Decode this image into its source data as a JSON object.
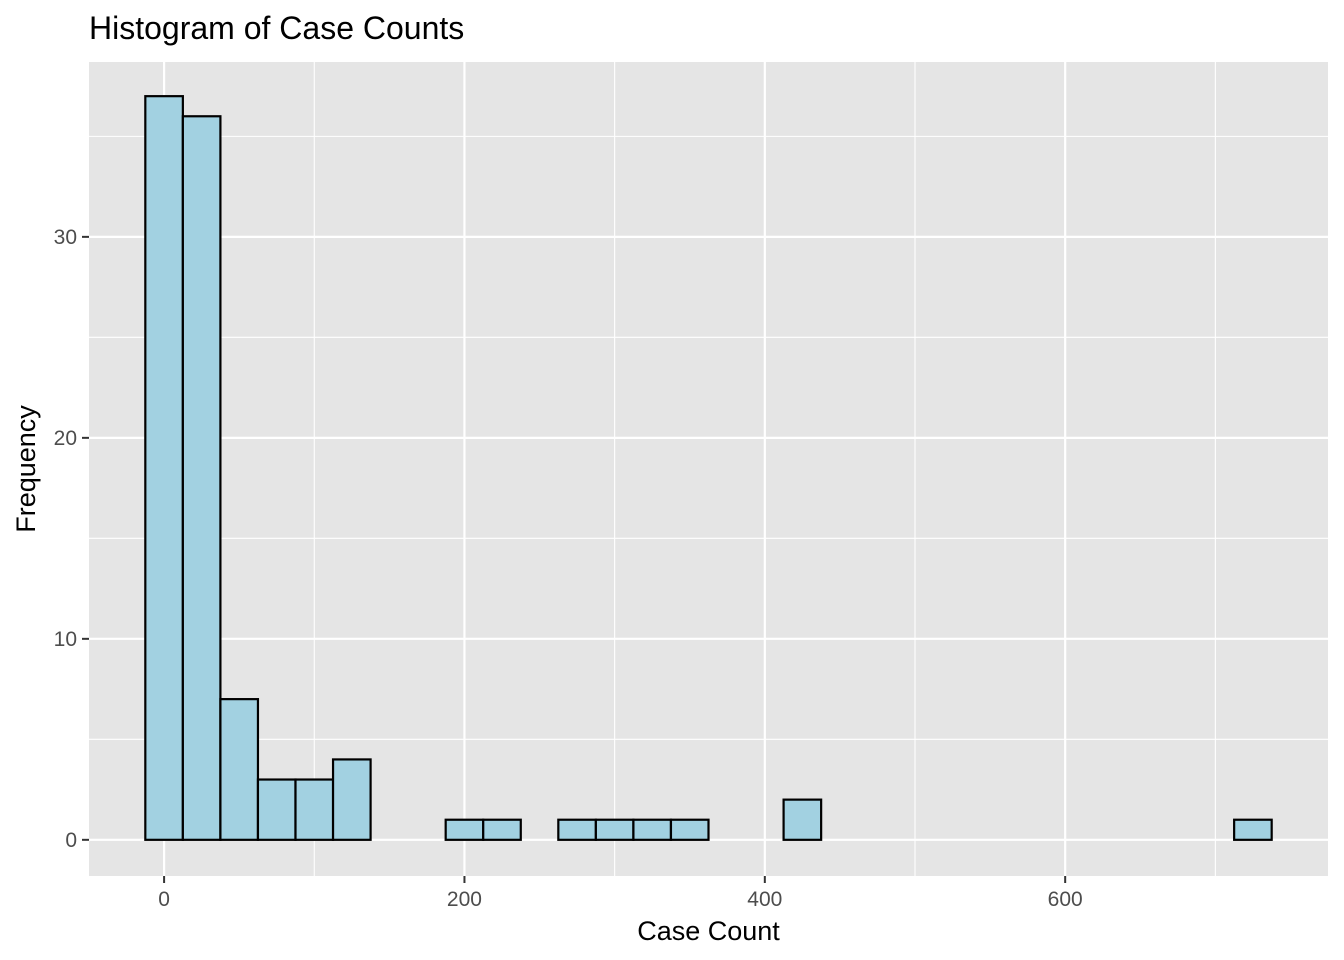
{
  "chart_data": {
    "type": "bar",
    "title": "Histogram of Case Counts",
    "xlabel": "Case Count",
    "ylabel": "Frequency",
    "xlim": [
      -50,
      775
    ],
    "ylim": [
      -1.8,
      38.7
    ],
    "x_ticks": [
      0,
      200,
      400,
      600
    ],
    "x_tick_labels": [
      "0",
      "200",
      "400",
      "600"
    ],
    "y_ticks": [
      0,
      10,
      20,
      30
    ],
    "y_tick_labels": [
      "0",
      "10",
      "20",
      "30"
    ],
    "grid": true,
    "bin_width": 25,
    "bin_starts": [
      -12.5,
      12.5,
      37.5,
      62.5,
      87.5,
      112.5,
      137.5,
      162.5,
      187.5,
      212.5,
      237.5,
      262.5,
      287.5,
      312.5,
      337.5,
      362.5,
      387.5,
      412.5,
      437.5,
      462.5,
      487.5,
      512.5,
      537.5,
      562.5,
      587.5,
      612.5,
      637.5,
      662.5,
      687.5,
      712.5
    ],
    "values": [
      37,
      36,
      7,
      3,
      3,
      4,
      0,
      0,
      1,
      1,
      0,
      1,
      1,
      1,
      1,
      0,
      0,
      2,
      0,
      0,
      0,
      0,
      0,
      0,
      0,
      0,
      0,
      0,
      0,
      1
    ],
    "colors": {
      "panel_background": "#e5e5e5",
      "grid": "#ffffff",
      "bar_fill": "#a2d1e1",
      "bar_outline": "#000000"
    }
  }
}
